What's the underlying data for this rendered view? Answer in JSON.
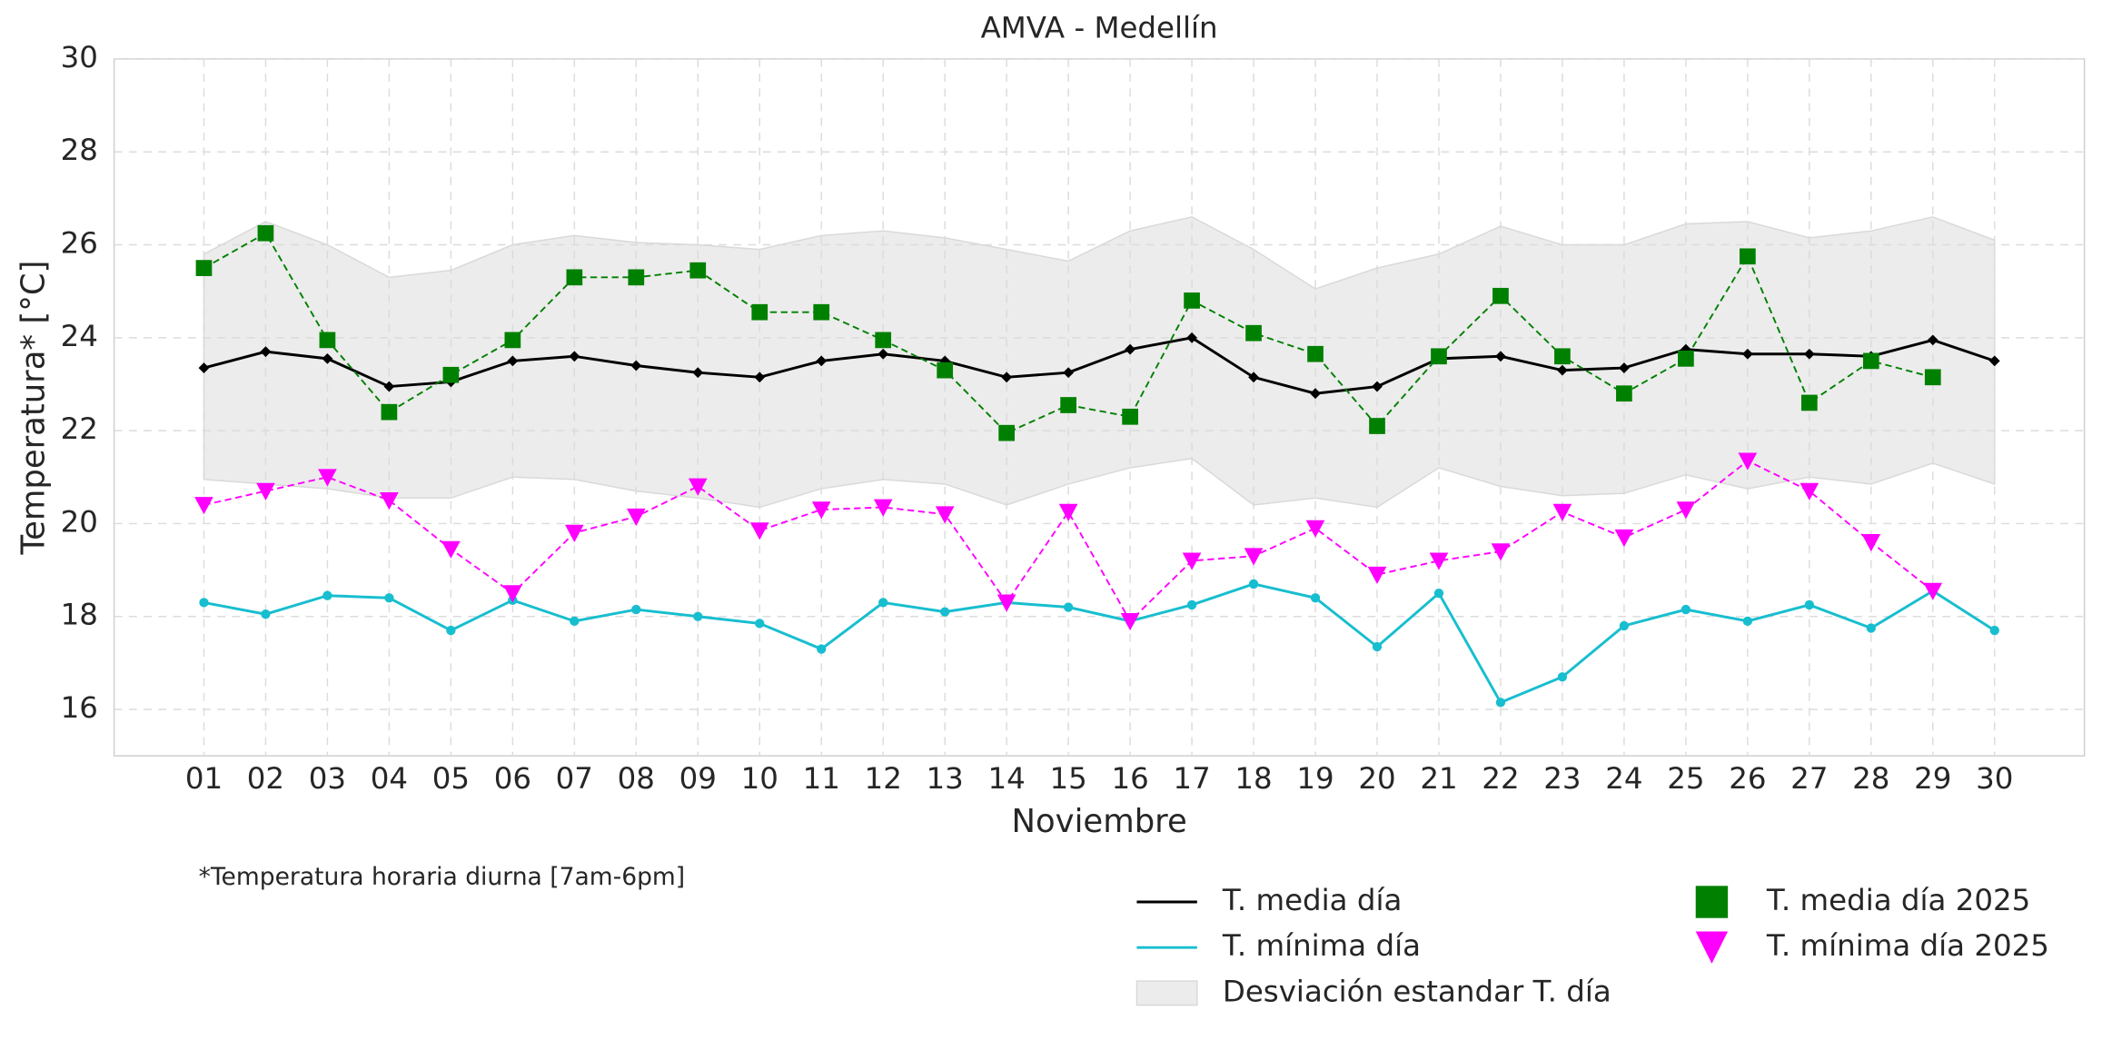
{
  "chart_data": {
    "type": "line",
    "title": "AMVA - Medellín",
    "x_label": "Noviembre",
    "y_label": "Temperatura* [°C]",
    "note": "*Temperatura horaria diurna [7am-6pm]",
    "categories": [
      "01",
      "02",
      "03",
      "04",
      "05",
      "06",
      "07",
      "08",
      "09",
      "10",
      "11",
      "12",
      "13",
      "14",
      "15",
      "16",
      "17",
      "18",
      "19",
      "20",
      "21",
      "22",
      "23",
      "24",
      "25",
      "26",
      "27",
      "28",
      "29",
      "30"
    ],
    "ylim": [
      15,
      30
    ],
    "yticks": [
      16,
      18,
      20,
      22,
      24,
      26,
      28,
      30
    ],
    "grid": true,
    "series": [
      {
        "name": "T. media día",
        "color": "#000000",
        "linestyle": "solid",
        "marker": "diamond",
        "values": [
          23.35,
          23.7,
          23.55,
          22.95,
          23.05,
          23.5,
          23.6,
          23.4,
          23.25,
          23.15,
          23.5,
          23.65,
          23.5,
          23.15,
          23.25,
          23.75,
          24.0,
          23.15,
          22.8,
          22.95,
          23.55,
          23.6,
          23.3,
          23.35,
          23.75,
          23.65,
          23.65,
          23.6,
          23.95,
          23.5
        ]
      },
      {
        "name": "T. mínima día",
        "color": "#17becf",
        "linestyle": "solid",
        "marker": "circle",
        "values": [
          18.3,
          18.05,
          18.45,
          18.4,
          17.7,
          18.35,
          17.9,
          18.15,
          18.0,
          17.85,
          17.3,
          18.3,
          18.1,
          18.3,
          18.2,
          17.9,
          18.25,
          18.7,
          18.4,
          17.35,
          18.5,
          16.15,
          16.7,
          17.8,
          18.15,
          17.9,
          18.25,
          17.75,
          18.55,
          17.7
        ]
      },
      {
        "name": "Desviación estandar T. día",
        "color": "#d9d9d9",
        "linestyle": "band",
        "upper": [
          25.8,
          26.5,
          26.0,
          25.3,
          25.45,
          26.0,
          26.2,
          26.05,
          26.0,
          25.9,
          26.2,
          26.3,
          26.15,
          25.9,
          25.65,
          26.3,
          26.6,
          25.9,
          25.05,
          25.5,
          25.8,
          26.4,
          26.0,
          26.0,
          26.45,
          26.5,
          26.15,
          26.3,
          26.6,
          26.1
        ],
        "lower": [
          20.95,
          20.85,
          20.75,
          20.55,
          20.55,
          21.0,
          20.95,
          20.7,
          20.55,
          20.35,
          20.75,
          20.95,
          20.85,
          20.4,
          20.85,
          21.2,
          21.4,
          20.4,
          20.55,
          20.35,
          21.2,
          20.8,
          20.6,
          20.65,
          21.05,
          20.75,
          21.0,
          20.85,
          21.3,
          20.85
        ]
      },
      {
        "name": "T. media día 2025",
        "color": "#008000",
        "linestyle": "dashed",
        "marker": "square",
        "values": [
          25.5,
          26.25,
          23.95,
          22.4,
          23.2,
          23.95,
          25.3,
          25.3,
          25.45,
          24.55,
          24.55,
          23.95,
          23.3,
          21.95,
          22.55,
          22.3,
          24.8,
          24.1,
          23.65,
          22.1,
          23.6,
          24.9,
          23.6,
          22.8,
          23.55,
          25.75,
          22.6,
          23.5,
          23.15,
          null
        ]
      },
      {
        "name": "T. mínima día 2025",
        "color": "#ff00ff",
        "linestyle": "dashed",
        "marker": "triangle-down",
        "values": [
          20.4,
          20.7,
          21.0,
          20.5,
          19.45,
          18.5,
          19.8,
          20.15,
          20.8,
          19.85,
          20.3,
          20.35,
          20.2,
          18.3,
          20.25,
          17.9,
          19.2,
          19.3,
          19.9,
          18.9,
          19.2,
          19.4,
          20.25,
          19.7,
          20.3,
          21.35,
          20.7,
          19.6,
          18.55,
          null
        ]
      }
    ]
  }
}
